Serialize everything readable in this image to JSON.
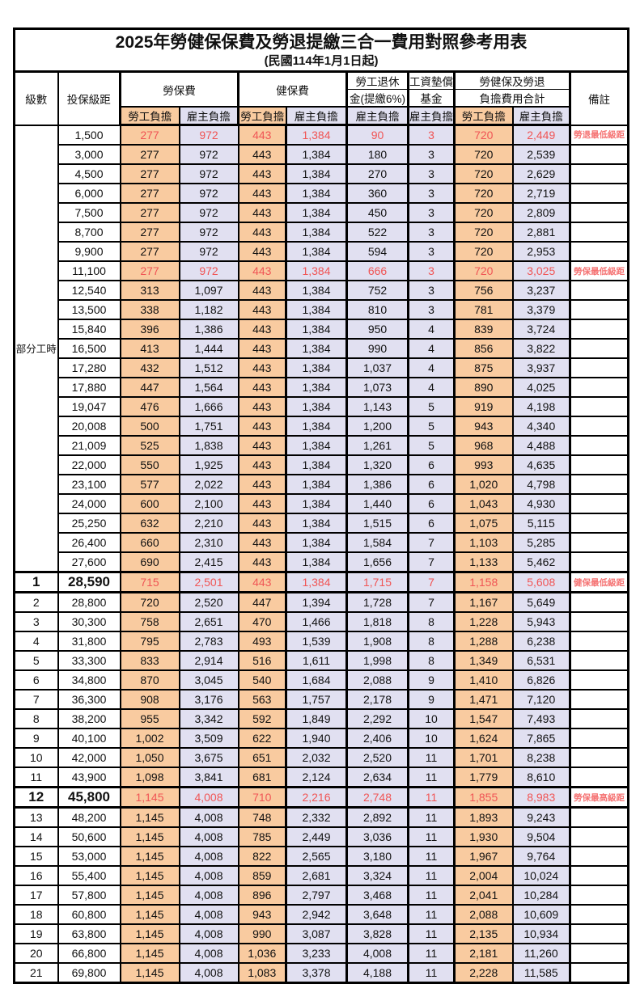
{
  "title": "2025年勞健保保費及勞退提繳三合一費用對照參考用表",
  "subtitle": "(民國114年1月1日起)",
  "colors": {
    "employee_col_bg": "#F9CBA0",
    "employer_col_bg": "#E1E0F1",
    "highlight_text": "#F05555",
    "remark_text": "#F57373",
    "border": "#000000"
  },
  "header": {
    "level": "級數",
    "bracket": "投保級距",
    "labor_insurance": "勞保費",
    "health_insurance": "健保費",
    "pension_top": "勞工退休",
    "pension_bottom": "金(提繳6%)",
    "wage_fund_top": "工資墊償",
    "wage_fund_bottom": "基金",
    "total_top": "勞健保及勞退",
    "total_bottom": "負擔費用合計",
    "remark": "備註",
    "employee": "勞工負擔",
    "employer": "雇主負擔"
  },
  "group": {
    "label": "部分工時",
    "size": 23
  },
  "rows": [
    {
      "lv": "",
      "b": "1,500",
      "v": [
        "277",
        "972",
        "443",
        "1,384",
        "90",
        "3",
        "720",
        "2,449"
      ],
      "rm": "勞退最低級距",
      "red": true
    },
    {
      "lv": "",
      "b": "3,000",
      "v": [
        "277",
        "972",
        "443",
        "1,384",
        "180",
        "3",
        "720",
        "2,539"
      ],
      "rm": ""
    },
    {
      "lv": "",
      "b": "4,500",
      "v": [
        "277",
        "972",
        "443",
        "1,384",
        "270",
        "3",
        "720",
        "2,629"
      ],
      "rm": ""
    },
    {
      "lv": "",
      "b": "6,000",
      "v": [
        "277",
        "972",
        "443",
        "1,384",
        "360",
        "3",
        "720",
        "2,719"
      ],
      "rm": ""
    },
    {
      "lv": "",
      "b": "7,500",
      "v": [
        "277",
        "972",
        "443",
        "1,384",
        "450",
        "3",
        "720",
        "2,809"
      ],
      "rm": ""
    },
    {
      "lv": "",
      "b": "8,700",
      "v": [
        "277",
        "972",
        "443",
        "1,384",
        "522",
        "3",
        "720",
        "2,881"
      ],
      "rm": ""
    },
    {
      "lv": "",
      "b": "9,900",
      "v": [
        "277",
        "972",
        "443",
        "1,384",
        "594",
        "3",
        "720",
        "2,953"
      ],
      "rm": ""
    },
    {
      "lv": "",
      "b": "11,100",
      "v": [
        "277",
        "972",
        "443",
        "1,384",
        "666",
        "3",
        "720",
        "3,025"
      ],
      "rm": "勞保最低級距",
      "red": true
    },
    {
      "lv": "",
      "b": "12,540",
      "v": [
        "313",
        "1,097",
        "443",
        "1,384",
        "752",
        "3",
        "756",
        "3,237"
      ],
      "rm": ""
    },
    {
      "lv": "",
      "b": "13,500",
      "v": [
        "338",
        "1,182",
        "443",
        "1,384",
        "810",
        "3",
        "781",
        "3,379"
      ],
      "rm": ""
    },
    {
      "lv": "",
      "b": "15,840",
      "v": [
        "396",
        "1,386",
        "443",
        "1,384",
        "950",
        "4",
        "839",
        "3,724"
      ],
      "rm": ""
    },
    {
      "lv": "",
      "b": "16,500",
      "v": [
        "413",
        "1,444",
        "443",
        "1,384",
        "990",
        "4",
        "856",
        "3,822"
      ],
      "rm": ""
    },
    {
      "lv": "",
      "b": "17,280",
      "v": [
        "432",
        "1,512",
        "443",
        "1,384",
        "1,037",
        "4",
        "875",
        "3,937"
      ],
      "rm": ""
    },
    {
      "lv": "",
      "b": "17,880",
      "v": [
        "447",
        "1,564",
        "443",
        "1,384",
        "1,073",
        "4",
        "890",
        "4,025"
      ],
      "rm": ""
    },
    {
      "lv": "",
      "b": "19,047",
      "v": [
        "476",
        "1,666",
        "443",
        "1,384",
        "1,143",
        "5",
        "919",
        "4,198"
      ],
      "rm": ""
    },
    {
      "lv": "",
      "b": "20,008",
      "v": [
        "500",
        "1,751",
        "443",
        "1,384",
        "1,200",
        "5",
        "943",
        "4,340"
      ],
      "rm": ""
    },
    {
      "lv": "",
      "b": "21,009",
      "v": [
        "525",
        "1,838",
        "443",
        "1,384",
        "1,261",
        "5",
        "968",
        "4,488"
      ],
      "rm": ""
    },
    {
      "lv": "",
      "b": "22,000",
      "v": [
        "550",
        "1,925",
        "443",
        "1,384",
        "1,320",
        "6",
        "993",
        "4,635"
      ],
      "rm": ""
    },
    {
      "lv": "",
      "b": "23,100",
      "v": [
        "577",
        "2,022",
        "443",
        "1,384",
        "1,386",
        "6",
        "1,020",
        "4,798"
      ],
      "rm": ""
    },
    {
      "lv": "",
      "b": "24,000",
      "v": [
        "600",
        "2,100",
        "443",
        "1,384",
        "1,440",
        "6",
        "1,043",
        "4,930"
      ],
      "rm": ""
    },
    {
      "lv": "",
      "b": "25,250",
      "v": [
        "632",
        "2,210",
        "443",
        "1,384",
        "1,515",
        "6",
        "1,075",
        "5,115"
      ],
      "rm": ""
    },
    {
      "lv": "",
      "b": "26,400",
      "v": [
        "660",
        "2,310",
        "443",
        "1,384",
        "1,584",
        "7",
        "1,103",
        "5,285"
      ],
      "rm": ""
    },
    {
      "lv": "",
      "b": "27,600",
      "v": [
        "690",
        "2,415",
        "443",
        "1,384",
        "1,656",
        "7",
        "1,133",
        "5,462"
      ],
      "rm": ""
    },
    {
      "lv": "1",
      "b": "28,590",
      "v": [
        "715",
        "2,501",
        "443",
        "1,384",
        "1,715",
        "7",
        "1,158",
        "5,608"
      ],
      "rm": "健保最低級距",
      "red": true,
      "big": true,
      "box": true
    },
    {
      "lv": "2",
      "b": "28,800",
      "v": [
        "720",
        "2,520",
        "447",
        "1,394",
        "1,728",
        "7",
        "1,167",
        "5,649"
      ],
      "rm": ""
    },
    {
      "lv": "3",
      "b": "30,300",
      "v": [
        "758",
        "2,651",
        "470",
        "1,466",
        "1,818",
        "8",
        "1,228",
        "5,943"
      ],
      "rm": ""
    },
    {
      "lv": "4",
      "b": "31,800",
      "v": [
        "795",
        "2,783",
        "493",
        "1,539",
        "1,908",
        "8",
        "1,288",
        "6,238"
      ],
      "rm": ""
    },
    {
      "lv": "5",
      "b": "33,300",
      "v": [
        "833",
        "2,914",
        "516",
        "1,611",
        "1,998",
        "8",
        "1,349",
        "6,531"
      ],
      "rm": ""
    },
    {
      "lv": "6",
      "b": "34,800",
      "v": [
        "870",
        "3,045",
        "540",
        "1,684",
        "2,088",
        "9",
        "1,410",
        "6,826"
      ],
      "rm": ""
    },
    {
      "lv": "7",
      "b": "36,300",
      "v": [
        "908",
        "3,176",
        "563",
        "1,757",
        "2,178",
        "9",
        "1,471",
        "7,120"
      ],
      "rm": ""
    },
    {
      "lv": "8",
      "b": "38,200",
      "v": [
        "955",
        "3,342",
        "592",
        "1,849",
        "2,292",
        "10",
        "1,547",
        "7,493"
      ],
      "rm": ""
    },
    {
      "lv": "9",
      "b": "40,100",
      "v": [
        "1,002",
        "3,509",
        "622",
        "1,940",
        "2,406",
        "10",
        "1,624",
        "7,865"
      ],
      "rm": ""
    },
    {
      "lv": "10",
      "b": "42,000",
      "v": [
        "1,050",
        "3,675",
        "651",
        "2,032",
        "2,520",
        "11",
        "1,701",
        "8,238"
      ],
      "rm": ""
    },
    {
      "lv": "11",
      "b": "43,900",
      "v": [
        "1,098",
        "3,841",
        "681",
        "2,124",
        "2,634",
        "11",
        "1,779",
        "8,610"
      ],
      "rm": ""
    },
    {
      "lv": "12",
      "b": "45,800",
      "v": [
        "1,145",
        "4,008",
        "710",
        "2,216",
        "2,748",
        "11",
        "1,855",
        "8,983"
      ],
      "rm": "勞保最高級距",
      "red": true,
      "big": true,
      "box": true
    },
    {
      "lv": "13",
      "b": "48,200",
      "v": [
        "1,145",
        "4,008",
        "748",
        "2,332",
        "2,892",
        "11",
        "1,893",
        "9,243"
      ],
      "rm": ""
    },
    {
      "lv": "14",
      "b": "50,600",
      "v": [
        "1,145",
        "4,008",
        "785",
        "2,449",
        "3,036",
        "11",
        "1,930",
        "9,504"
      ],
      "rm": ""
    },
    {
      "lv": "15",
      "b": "53,000",
      "v": [
        "1,145",
        "4,008",
        "822",
        "2,565",
        "3,180",
        "11",
        "1,967",
        "9,764"
      ],
      "rm": ""
    },
    {
      "lv": "16",
      "b": "55,400",
      "v": [
        "1,145",
        "4,008",
        "859",
        "2,681",
        "3,324",
        "11",
        "2,004",
        "10,024"
      ],
      "rm": ""
    },
    {
      "lv": "17",
      "b": "57,800",
      "v": [
        "1,145",
        "4,008",
        "896",
        "2,797",
        "3,468",
        "11",
        "2,041",
        "10,284"
      ],
      "rm": ""
    },
    {
      "lv": "18",
      "b": "60,800",
      "v": [
        "1,145",
        "4,008",
        "943",
        "2,942",
        "3,648",
        "11",
        "2,088",
        "10,609"
      ],
      "rm": ""
    },
    {
      "lv": "19",
      "b": "63,800",
      "v": [
        "1,145",
        "4,008",
        "990",
        "3,087",
        "3,828",
        "11",
        "2,135",
        "10,934"
      ],
      "rm": ""
    },
    {
      "lv": "20",
      "b": "66,800",
      "v": [
        "1,145",
        "4,008",
        "1,036",
        "3,233",
        "4,008",
        "11",
        "2,181",
        "11,260"
      ],
      "rm": ""
    },
    {
      "lv": "21",
      "b": "69,800",
      "v": [
        "1,145",
        "4,008",
        "1,083",
        "3,378",
        "4,188",
        "11",
        "2,228",
        "11,585"
      ],
      "rm": ""
    }
  ]
}
